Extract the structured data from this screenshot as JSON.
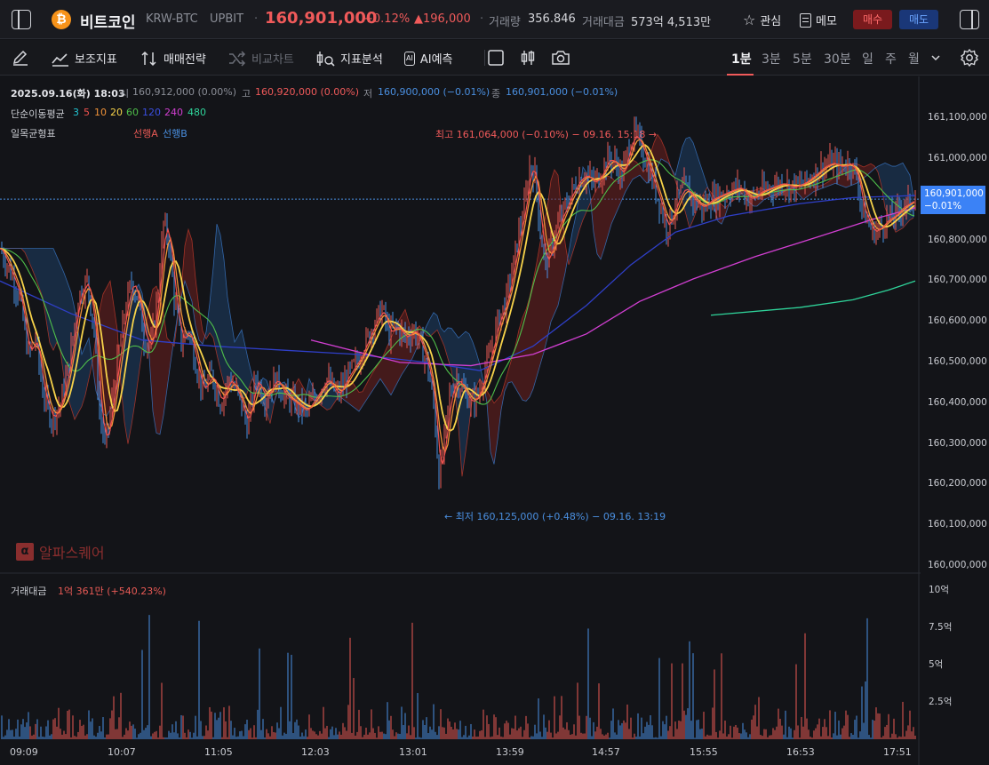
{
  "header": {
    "coin_logo": "₿",
    "coin_name": "비트코인",
    "pair": "KRW-BTC",
    "exchange": "UPBIT",
    "price": "160,901,000",
    "change_pct": "+0.12%",
    "change_abs": "▲196,000",
    "volume_label": "거래량",
    "volume_value": "356.846",
    "amount_label": "거래대금",
    "amount_value": "573억 4,513만",
    "watch_label": "관심",
    "memo_label": "메모",
    "buy_label": "매수",
    "sell_label": "매도"
  },
  "toolbar": {
    "indicators": "보조지표",
    "strategy": "매매전략",
    "compare": "비교차트",
    "analysis": "지표분석",
    "ai_badge": "AI",
    "ai_predict": "AI예측",
    "timeframes": [
      "1분",
      "3분",
      "5분",
      "30분",
      "일",
      "주",
      "월"
    ],
    "active_timeframe": "1분"
  },
  "legend": {
    "ohlc_date": "2025.09.16(화) 18:03",
    "open_label": "시",
    "open_value": "160,912,000 (0.00%)",
    "high_label": "고",
    "high_value": "160,920,000 (0.00%)",
    "low_label": "저",
    "low_value": "160,900,000 (−0.01%)",
    "close_label": "종",
    "close_value": "160,901,000 (−0.01%)",
    "ma_title": "단순이동평균",
    "ma_periods": [
      "3",
      "5",
      "10",
      "20",
      "60",
      "120",
      "240",
      "480"
    ],
    "ichimoku_title": "일목균형표",
    "leading_a": "선행A",
    "leading_b": "선행B"
  },
  "annotations": {
    "high": "최고 161,064,000 (−0.10%) − 09.16. 15:18 →",
    "low": "← 최저 160,125,000 (+0.48%) − 09.16. 13:19"
  },
  "current_price_tag": {
    "price": "160,901,000",
    "pct": "−0.01%"
  },
  "watermark": {
    "logo": "α",
    "text": "알파스퀘어"
  },
  "volume_panel": {
    "label": "거래대금",
    "value": "1억 361만 (+540.23%)"
  },
  "colors": {
    "up": "#e85a55",
    "down": "#4a8fe0",
    "ma3": "#21c4d2",
    "ma5": "#f0524e",
    "ma10": "#f09238",
    "ma20": "#f7d34a",
    "ma60": "#4fbf4a",
    "ma120": "#2f3fc8",
    "ma240": "#d23fd2",
    "ma480": "#2fd49a",
    "cloud_bull": "#6e1f1f",
    "cloud_bear": "#1d3e66"
  },
  "chart_data": {
    "type": "candlestick",
    "symbol": "KRW-BTC",
    "interval": "1분",
    "price_axis_ticks": [
      "161,100,000",
      "161,000,000",
      "160,900,000",
      "160,800,000",
      "160,700,000",
      "160,600,000",
      "160,500,000",
      "160,400,000",
      "160,300,000",
      "160,200,000",
      "160,100,000",
      "160,000,000"
    ],
    "price_range": [
      160000000,
      161100000
    ],
    "volume_axis_ticks": [
      "10억",
      "7.5억",
      "5억",
      "2.5억"
    ],
    "volume_range": [
      0,
      1000000000
    ],
    "time_ticks": [
      "09:09",
      "10:07",
      "11:05",
      "12:03",
      "13:01",
      "13:59",
      "14:57",
      "15:55",
      "16:53",
      "17:51"
    ],
    "last": {
      "date": "2025.09.16(화) 18:03",
      "open": 160912000,
      "high": 160920000,
      "low": 160900000,
      "close": 160901000
    },
    "session_high": {
      "value": 161064000,
      "time": "09.16. 15:18"
    },
    "session_low": {
      "value": 160125000,
      "time": "09.16. 13:19"
    },
    "price_path": [
      [
        0,
        160780000
      ],
      [
        12,
        160720000
      ],
      [
        22,
        160660000
      ],
      [
        32,
        160520000
      ],
      [
        40,
        160560000
      ],
      [
        48,
        160430000
      ],
      [
        58,
        160360000
      ],
      [
        68,
        160400000
      ],
      [
        78,
        160500000
      ],
      [
        88,
        160660000
      ],
      [
        98,
        160700000
      ],
      [
        106,
        160580000
      ],
      [
        112,
        160380000
      ],
      [
        118,
        160300000
      ],
      [
        124,
        160370000
      ],
      [
        132,
        160500000
      ],
      [
        140,
        160620000
      ],
      [
        148,
        160700000
      ],
      [
        156,
        160650000
      ],
      [
        162,
        160560000
      ],
      [
        170,
        160540000
      ],
      [
        178,
        160680000
      ],
      [
        184,
        160840000
      ],
      [
        190,
        160800000
      ],
      [
        196,
        160660000
      ],
      [
        204,
        160550000
      ],
      [
        212,
        160580000
      ],
      [
        220,
        160500000
      ],
      [
        228,
        160430000
      ],
      [
        238,
        160470000
      ],
      [
        248,
        160400000
      ],
      [
        258,
        160460000
      ],
      [
        268,
        160420000
      ],
      [
        278,
        160350000
      ],
      [
        288,
        160460000
      ],
      [
        298,
        160410000
      ],
      [
        310,
        160460000
      ],
      [
        320,
        160420000
      ],
      [
        332,
        160400000
      ],
      [
        344,
        160380000
      ],
      [
        356,
        160420000
      ],
      [
        368,
        160460000
      ],
      [
        380,
        160420000
      ],
      [
        392,
        160470000
      ],
      [
        404,
        160510000
      ],
      [
        414,
        160560000
      ],
      [
        422,
        160600000
      ],
      [
        430,
        160630000
      ],
      [
        438,
        160570000
      ],
      [
        446,
        160590000
      ],
      [
        456,
        160560000
      ],
      [
        466,
        160580000
      ],
      [
        474,
        160540000
      ],
      [
        482,
        160480000
      ],
      [
        488,
        160400000
      ],
      [
        494,
        160220000
      ],
      [
        500,
        160310000
      ],
      [
        506,
        160420000
      ],
      [
        514,
        160460000
      ],
      [
        522,
        160430000
      ],
      [
        530,
        160400000
      ],
      [
        538,
        160420000
      ],
      [
        546,
        160480000
      ],
      [
        554,
        160540000
      ],
      [
        560,
        160600000
      ],
      [
        568,
        160640000
      ],
      [
        576,
        160720000
      ],
      [
        584,
        160820000
      ],
      [
        590,
        160880000
      ],
      [
        596,
        160980000
      ],
      [
        602,
        160960000
      ],
      [
        608,
        160820000
      ],
      [
        614,
        160740000
      ],
      [
        620,
        160780000
      ],
      [
        628,
        160840000
      ],
      [
        636,
        160880000
      ],
      [
        644,
        160920000
      ],
      [
        652,
        160950000
      ],
      [
        660,
        160960000
      ],
      [
        668,
        160940000
      ],
      [
        676,
        160960000
      ],
      [
        684,
        161000000
      ],
      [
        692,
        160990000
      ],
      [
        700,
        160960000
      ],
      [
        708,
        161030000
      ],
      [
        714,
        161060000
      ],
      [
        720,
        161040000
      ],
      [
        726,
        161000000
      ],
      [
        732,
        160960000
      ],
      [
        738,
        160920000
      ],
      [
        744,
        160880000
      ],
      [
        750,
        160830000
      ],
      [
        756,
        160860000
      ],
      [
        762,
        160900000
      ],
      [
        770,
        160930000
      ],
      [
        780,
        160900000
      ],
      [
        790,
        160880000
      ],
      [
        800,
        160900000
      ],
      [
        810,
        160910000
      ],
      [
        820,
        160920000
      ],
      [
        832,
        160930000
      ],
      [
        844,
        160900000
      ],
      [
        856,
        160920000
      ],
      [
        868,
        160930000
      ],
      [
        880,
        160940000
      ],
      [
        892,
        160930000
      ],
      [
        904,
        160940000
      ],
      [
        916,
        160960000
      ],
      [
        926,
        160980000
      ],
      [
        936,
        160990000
      ],
      [
        946,
        160980000
      ],
      [
        956,
        160990000
      ],
      [
        964,
        160960000
      ],
      [
        970,
        160880000
      ],
      [
        976,
        160850000
      ],
      [
        982,
        160820000
      ],
      [
        990,
        160830000
      ],
      [
        998,
        160850000
      ],
      [
        1006,
        160860000
      ],
      [
        1014,
        160880000
      ],
      [
        1022,
        160890000
      ],
      [
        1030,
        160901000
      ]
    ],
    "ma480_path": [
      [
        800,
        160616000
      ],
      [
        900,
        160635000
      ],
      [
        960,
        160654000
      ],
      [
        1000,
        160678000
      ],
      [
        1030,
        160700000
      ]
    ],
    "ma240_path": [
      [
        350,
        160555000
      ],
      [
        450,
        160500000
      ],
      [
        530,
        160492000
      ],
      [
        600,
        160520000
      ],
      [
        660,
        160570000
      ],
      [
        720,
        160650000
      ],
      [
        780,
        160705000
      ],
      [
        850,
        160760000
      ],
      [
        920,
        160808000
      ],
      [
        980,
        160850000
      ],
      [
        1030,
        160880000
      ]
    ],
    "ma120_path": [
      [
        0,
        160700000
      ],
      [
        80,
        160620000
      ],
      [
        160,
        160555000
      ],
      [
        240,
        160540000
      ],
      [
        320,
        160530000
      ],
      [
        400,
        160520000
      ],
      [
        480,
        160500000
      ],
      [
        540,
        160480000
      ],
      [
        600,
        160540000
      ],
      [
        660,
        160640000
      ],
      [
        710,
        160740000
      ],
      [
        760,
        160820000
      ],
      [
        820,
        160860000
      ],
      [
        900,
        160890000
      ],
      [
        960,
        160905000
      ],
      [
        1030,
        160910000
      ]
    ]
  }
}
